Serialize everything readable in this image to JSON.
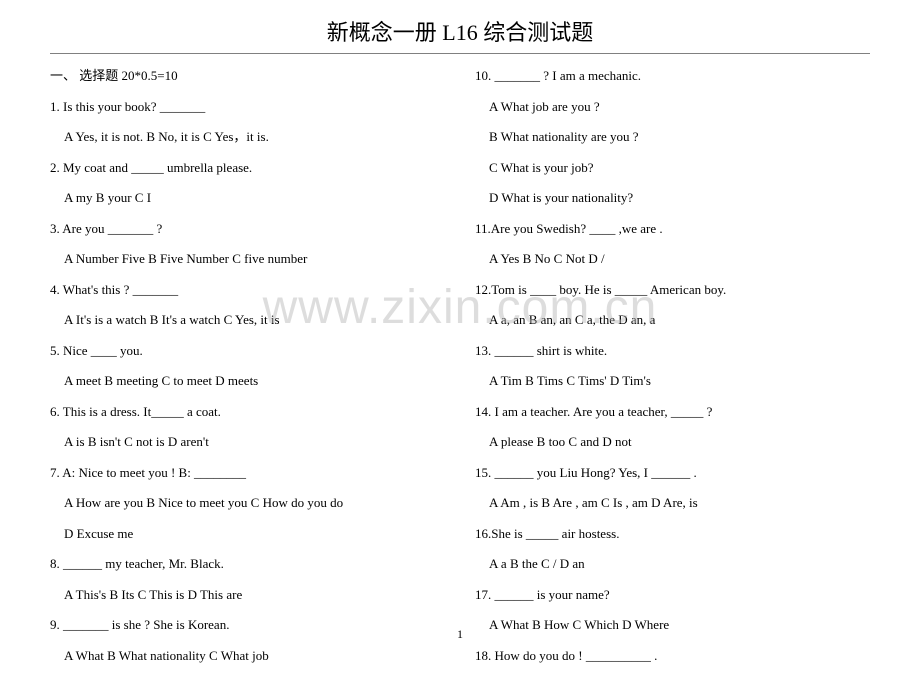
{
  "title": "新概念一册 L16 综合测试题",
  "section_header": "一、 选择题   20*0.5=10",
  "watermark": "www.zixin.com.cn",
  "page_number": "1",
  "left": [
    {
      "q": "1.  Is this your book?    _______"
    },
    {
      "a": "A   Yes, it is not.        B   No, it is     C Yes，it is."
    },
    {
      "q": "2.  My coat and  _____  umbrella please."
    },
    {
      "a": "A   my      B   your        C    I"
    },
    {
      "q": "3.  Are you  _______  ?"
    },
    {
      "a": "A   Number Five        B    Five   Number        C    five number"
    },
    {
      "q": "4.  What's this ?  _______"
    },
    {
      "a": "A   It's is a watch        B It's a watch      C    Yes, it is"
    },
    {
      "q": "5.  Nice  ____  you."
    },
    {
      "a": "A   meet    B    meeting      C   to meet       D   meets"
    },
    {
      "q": "6.  This is a dress. It_____  a coat."
    },
    {
      "a": "A is       B  isn't     C not is      D aren't"
    },
    {
      "q": "7.  A: Nice to meet you !    B:   ________"
    },
    {
      "a": "A How are you       B   Nice to meet you       C How do you do"
    },
    {
      "a2": "D      Excuse me"
    },
    {
      "q": "8.  ______  my teacher, Mr. Black."
    },
    {
      "a": " A This's       B  Its    C This is     D This are"
    },
    {
      "q": "9.  _______  is she ?      She is    Korean."
    },
    {
      "a": "A    What         B  What nationality      C What job"
    }
  ],
  "right": [
    {
      "q": "10. _______  ?       I am a mechanic."
    },
    {
      "a": "A    What job are you ?"
    },
    {
      "a2": "B    What nationality are you ?"
    },
    {
      "a3": "C    What is your job?"
    },
    {
      "a4": "D    What is your nationality?"
    },
    {
      "q": "11.Are you Swedish?    ____  ,we are ."
    },
    {
      "a": "A   Yes      B  No       C Not     D /"
    },
    {
      "q": "12.Tom is  ____  boy. He is  _____   American boy."
    },
    {
      "a": " A a, an       B   an, an      C a, the     D an, a"
    },
    {
      "q": "13. ______  shirt is white."
    },
    {
      "a": "A   Tim     B   Tims      C Tims'      D Tim's"
    },
    {
      "q": "14.  I am a teacher.    Are you a teacher,  _____  ?"
    },
    {
      "a": "A   please      B   too      C    and      D    not"
    },
    {
      "q": "15.  ______  you Liu Hong?   Yes, I  ______  ."
    },
    {
      "a": "A   Am , is      B   Are , am     C Is , am     D Are, is"
    },
    {
      "q": "16.She is  _____  air hostess."
    },
    {
      "a": "A   a     B   the     C  /     D an"
    },
    {
      "q": "17. ______   is your name?"
    },
    {
      "a": "A What      B   How      C Which      D    Where"
    },
    {
      "q": "18.  How do you do !    __________  ."
    }
  ]
}
